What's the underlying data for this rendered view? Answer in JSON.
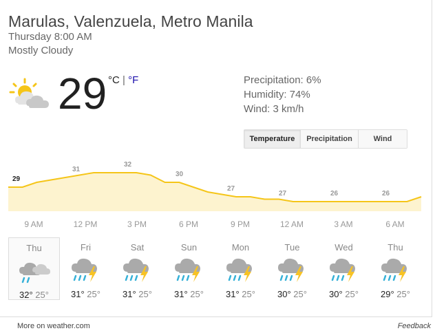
{
  "location": "Marulas, Valenzuela, Metro Manila",
  "datetime": "Thursday 8:00 AM",
  "condition": "Mostly Cloudy",
  "current": {
    "temp": "29",
    "unit_c": "°C",
    "unit_sep": "|",
    "unit_f": "°F",
    "icon": "partly-cloudy-icon"
  },
  "details": {
    "precipitation": "Precipitation: 6%",
    "humidity": "Humidity: 74%",
    "wind": "Wind: 3 km/h"
  },
  "tabs": [
    {
      "label": "Temperature",
      "active": true
    },
    {
      "label": "Precipitation",
      "active": false
    },
    {
      "label": "Wind",
      "active": false
    }
  ],
  "colors": {
    "line": "#f5c518",
    "fill": "#fdf3cf",
    "rain": "#36b1d8",
    "bolt": "#f7c325"
  },
  "chart_data": {
    "type": "area",
    "labeled_values": [
      "29",
      "31",
      "32",
      "30",
      "27",
      "27",
      "26",
      "26"
    ],
    "values": [
      29,
      29,
      30,
      30.5,
      31,
      31.5,
      32,
      32,
      32,
      32,
      31.5,
      30,
      30,
      29,
      28,
      27.5,
      27,
      27,
      26.5,
      26.5,
      26,
      26,
      26,
      26,
      26,
      26,
      26,
      26,
      26,
      27
    ],
    "times": [
      "9 AM",
      "12 PM",
      "3 PM",
      "6 PM",
      "9 PM",
      "12 AM",
      "3 AM",
      "6 AM"
    ],
    "y_domain": [
      24,
      33
    ]
  },
  "forecast": [
    {
      "day": "Thu",
      "hi": "32°",
      "lo": "25°",
      "icon": "partly-cloudy-icon",
      "selected": true
    },
    {
      "day": "Fri",
      "hi": "31°",
      "lo": "25°",
      "icon": "thunderstorm-icon",
      "selected": false
    },
    {
      "day": "Sat",
      "hi": "31°",
      "lo": "25°",
      "icon": "thunderstorm-icon",
      "selected": false
    },
    {
      "day": "Sun",
      "hi": "31°",
      "lo": "25°",
      "icon": "thunderstorm-icon",
      "selected": false
    },
    {
      "day": "Mon",
      "hi": "31°",
      "lo": "25°",
      "icon": "thunderstorm-icon",
      "selected": false
    },
    {
      "day": "Tue",
      "hi": "30°",
      "lo": "25°",
      "icon": "thunderstorm-icon",
      "selected": false
    },
    {
      "day": "Wed",
      "hi": "30°",
      "lo": "25°",
      "icon": "thunderstorm-icon",
      "selected": false
    },
    {
      "day": "Thu",
      "hi": "29°",
      "lo": "25°",
      "icon": "thunderstorm-icon",
      "selected": false
    }
  ],
  "footer": {
    "more": "More on weather.com",
    "feedback": "Feedback"
  }
}
